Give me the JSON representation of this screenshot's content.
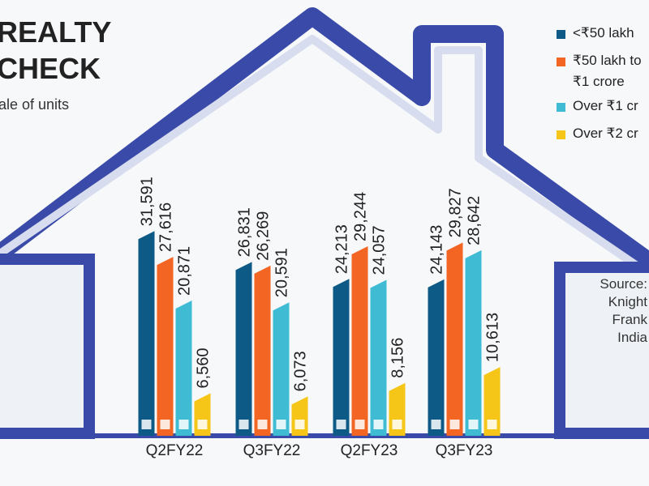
{
  "chart_data": {
    "type": "bar",
    "title": "REALTY",
    "title_line2": "CHECK",
    "subtitle": "ale of units",
    "source": "Source: Knight Frank India",
    "categories": [
      "Q2FY22",
      "Q3FY22",
      "Q2FY23",
      "Q3FY23"
    ],
    "ylim": [
      0,
      35000
    ],
    "legend": "top-right",
    "series": [
      {
        "name": "<₹50 lakh",
        "color": "#0d5a86",
        "values": [
          31591,
          26831,
          24213,
          24143
        ],
        "value_labels": [
          "31,591",
          "26,831",
          "24,213",
          "24,143"
        ]
      },
      {
        "name": "₹50 lakh to ₹1 crore",
        "color": "#f26522",
        "values": [
          27616,
          26269,
          29244,
          29827
        ],
        "value_labels": [
          "27,616",
          "26,269",
          "29,244",
          "29,827"
        ]
      },
      {
        "name": "Over ₹1 cr",
        "color": "#3fbcd4",
        "values": [
          20871,
          20591,
          24057,
          28642
        ],
        "value_labels": [
          "20,871",
          "20,591",
          "24,057",
          "28,642"
        ]
      },
      {
        "name": "Over ₹2 cr",
        "color": "#f5c518",
        "values": [
          6560,
          6073,
          8156,
          10613
        ],
        "value_labels": [
          "6,560",
          "6,073",
          "8,156",
          "10,613"
        ]
      }
    ]
  }
}
